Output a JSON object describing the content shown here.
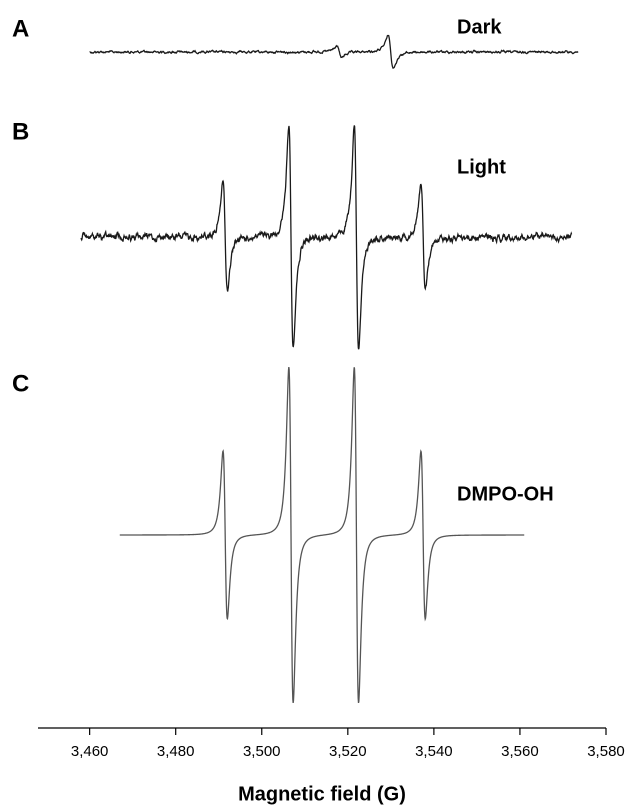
{
  "chart_data": {
    "type": "epr",
    "xlabel": "Magnetic field (G)",
    "xlim": [
      3448,
      3580
    ],
    "xticks": [
      {
        "value": 3460,
        "label": "3,460"
      },
      {
        "value": 3480,
        "label": "3,480"
      },
      {
        "value": 3500,
        "label": "3,500"
      },
      {
        "value": 3520,
        "label": "3,520"
      },
      {
        "value": 3540,
        "label": "3,540"
      },
      {
        "value": 3560,
        "label": "3,560"
      },
      {
        "value": 3580,
        "label": "3,580"
      }
    ],
    "panels": [
      {
        "label": "A",
        "name": "Dark",
        "color": "#1a1a1a",
        "x_range": [
          3460,
          3573.5
        ],
        "linewidth": 1.2,
        "lines": [
          {
            "center": 3518,
            "amplitude": 0.1
          },
          {
            "center": 3530,
            "amplitude": 0.3
          }
        ]
      },
      {
        "label": "B",
        "name": "Light",
        "color": "#1a1a1a",
        "x_range": [
          3458,
          3572
        ],
        "linewidth": 1,
        "lines": [
          {
            "center": 3491.5,
            "amplitude": 1
          },
          {
            "center": 3506.8,
            "amplitude": 2
          },
          {
            "center": 3522,
            "amplitude": 2
          },
          {
            "center": 3537.5,
            "amplitude": 1
          }
        ]
      },
      {
        "label": "C",
        "name": "DMPO-OH",
        "color": "#555555",
        "x_range": [
          3467,
          3561
        ],
        "linewidth": 1,
        "lines": [
          {
            "center": 3491.5,
            "amplitude": 1
          },
          {
            "center": 3506.8,
            "amplitude": 2
          },
          {
            "center": 3522,
            "amplitude": 2
          },
          {
            "center": 3537.5,
            "amplitude": 1
          }
        ]
      }
    ]
  }
}
